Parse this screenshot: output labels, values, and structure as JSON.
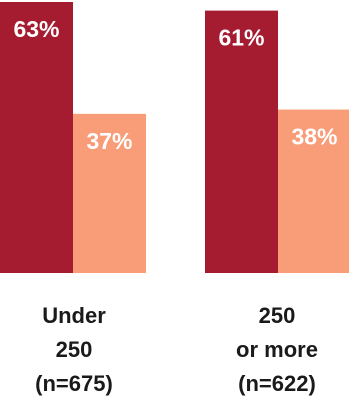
{
  "chart_data": {
    "type": "bar",
    "categories": [
      [
        "Under",
        "250",
        "(n=675)"
      ],
      [
        "250",
        "or more",
        "(n=622)"
      ]
    ],
    "series": [
      {
        "values": [
          63,
          61
        ],
        "labels": [
          "63%",
          "61%"
        ],
        "color": "#a51c30"
      },
      {
        "values": [
          37,
          38
        ],
        "labels": [
          "37%",
          "38%"
        ],
        "color": "#f89d78"
      }
    ],
    "ylim": [
      0,
      63
    ],
    "grid": false,
    "legend": "none"
  }
}
